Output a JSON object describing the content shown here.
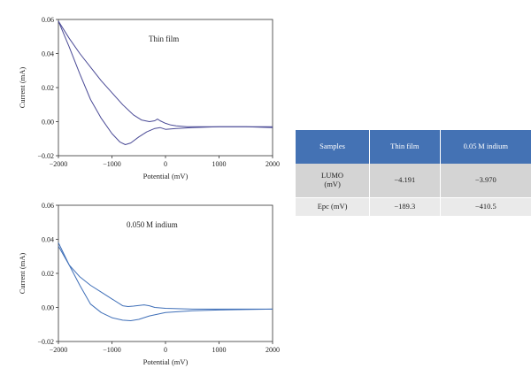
{
  "chart_data": [
    {
      "type": "line",
      "annotation": "Thin film",
      "xlabel": "Potential (mV)",
      "ylabel": "Current (mA)",
      "xlim": [
        -2000,
        2000
      ],
      "ylim": [
        -0.02,
        0.06
      ],
      "xticks": [
        -2000,
        -1000,
        0,
        1000,
        2000
      ],
      "yticks": [
        -0.02,
        0.0,
        0.02,
        0.04,
        0.06
      ],
      "xtick_labels": [
        "−2000",
        "−1000",
        "0",
        "1000",
        "2000"
      ],
      "ytick_labels": [
        "−0.02",
        "0.00",
        "0.02",
        "0.04",
        "0.06"
      ],
      "grid": false,
      "color": "#4a4a96",
      "series": [
        {
          "x": [
            -2000,
            -1800,
            -1600,
            -1400,
            -1200,
            -1000,
            -800,
            -600,
            -450,
            -300,
            -200,
            -150,
            -100,
            0,
            100,
            200,
            400,
            600,
            800,
            1000,
            1500,
            2000
          ],
          "y": [
            0.059,
            0.049,
            0.04,
            0.032,
            0.024,
            0.017,
            0.01,
            0.004,
            0.001,
            0.0,
            0.0005,
            0.0015,
            0.0005,
            -0.001,
            -0.002,
            -0.0025,
            -0.003,
            -0.003,
            -0.003,
            -0.003,
            -0.003,
            -0.003
          ]
        },
        {
          "x": [
            -2000,
            -1800,
            -1600,
            -1400,
            -1200,
            -1000,
            -850,
            -750,
            -650,
            -500,
            -350,
            -200,
            -100,
            0,
            200,
            500,
            1000,
            1500,
            2000
          ],
          "y": [
            0.059,
            0.044,
            0.028,
            0.013,
            0.002,
            -0.007,
            -0.012,
            -0.0135,
            -0.0125,
            -0.009,
            -0.006,
            -0.004,
            -0.0035,
            -0.0045,
            -0.004,
            -0.0035,
            -0.003,
            -0.003,
            -0.0035
          ]
        }
      ]
    },
    {
      "type": "line",
      "annotation": "0.050 M indium",
      "xlabel": "Potential (mV)",
      "ylabel": "Current (mA)",
      "xlim": [
        -2000,
        2000
      ],
      "ylim": [
        -0.02,
        0.06
      ],
      "xticks": [
        -2000,
        -1000,
        0,
        1000,
        2000
      ],
      "yticks": [
        -0.02,
        0.0,
        0.02,
        0.04,
        0.06
      ],
      "xtick_labels": [
        "−2000",
        "−1000",
        "0",
        "1000",
        "2000"
      ],
      "ytick_labels": [
        "−0.02",
        "0.00",
        "0.02",
        "0.04",
        "0.06"
      ],
      "grid": false,
      "color": "#3f6fb8",
      "series": [
        {
          "x": [
            -2000,
            -1800,
            -1600,
            -1400,
            -1200,
            -1000,
            -800,
            -700,
            -600,
            -400,
            -300,
            -200,
            0,
            500,
            1000,
            2000
          ],
          "y": [
            0.036,
            0.025,
            0.018,
            0.013,
            0.009,
            0.005,
            0.001,
            0.0005,
            0.0008,
            0.0015,
            0.001,
            0.0,
            -0.0005,
            -0.001,
            -0.001,
            -0.001
          ]
        },
        {
          "x": [
            -2000,
            -1800,
            -1600,
            -1400,
            -1200,
            -1000,
            -800,
            -650,
            -500,
            -300,
            0,
            500,
            1000,
            2000
          ],
          "y": [
            0.038,
            0.025,
            0.013,
            0.002,
            -0.003,
            -0.006,
            -0.0075,
            -0.0078,
            -0.007,
            -0.005,
            -0.003,
            -0.002,
            -0.0015,
            -0.001
          ]
        }
      ]
    }
  ],
  "table": {
    "headers": [
      "Samples",
      "Thin film",
      "0.05 M indium"
    ],
    "rows": [
      [
        "LUMO (mV)",
        "−4.191",
        "−3.970"
      ],
      [
        "Epc (mV)",
        "−189.3",
        "−410.5"
      ]
    ]
  },
  "colors": {
    "table_header_bg": "#4472b4",
    "row_dark": "#d4d4d4",
    "row_light": "#eaeaea"
  }
}
